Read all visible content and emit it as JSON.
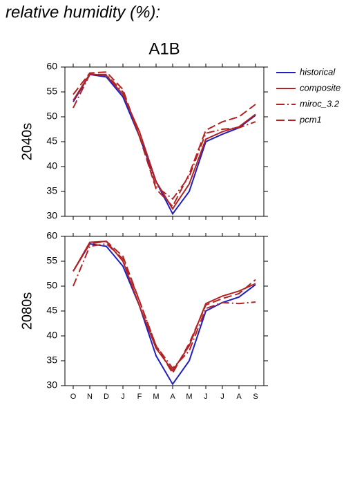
{
  "title": "relative humidity (%):",
  "chart_data": [
    {
      "type": "line",
      "title": "A1B",
      "y_label": "2040s",
      "categories": [
        "O",
        "N",
        "D",
        "J",
        "F",
        "M",
        "A",
        "M",
        "J",
        "J",
        "A",
        "S"
      ],
      "ylim": [
        30,
        60
      ],
      "yticks": [
        30,
        35,
        40,
        45,
        50,
        55,
        60
      ],
      "series": [
        {
          "name": "historical",
          "color": "#1f1fbf",
          "style": "solid",
          "values": [
            53,
            58.5,
            58,
            54,
            46,
            37,
            30.5,
            35,
            45,
            46.5,
            47.8,
            50.3
          ]
        },
        {
          "name": "composite",
          "color": "#b22222",
          "style": "solid",
          "values": [
            53.3,
            58.6,
            58.3,
            54.5,
            47,
            37,
            31.5,
            36.5,
            45.5,
            47,
            48,
            50.5
          ]
        },
        {
          "name": "miroc_3.2",
          "color": "#b22222",
          "style": "dashdot",
          "values": [
            51.8,
            58.5,
            58.5,
            55,
            46,
            36,
            33.5,
            38,
            46.7,
            47.5,
            47.8,
            49
          ]
        },
        {
          "name": "pcm1",
          "color": "#b22222",
          "style": "dashed",
          "values": [
            54.5,
            58.8,
            59,
            55.5,
            46,
            35.5,
            32,
            38.5,
            47.3,
            49,
            50,
            52.5
          ]
        }
      ]
    },
    {
      "type": "line",
      "y_label": "2080s",
      "categories": [
        "O",
        "N",
        "D",
        "J",
        "F",
        "M",
        "A",
        "M",
        "J",
        "J",
        "A",
        "S"
      ],
      "ylim": [
        30,
        60
      ],
      "yticks": [
        30,
        35,
        40,
        45,
        50,
        55,
        60
      ],
      "series": [
        {
          "name": "historical",
          "color": "#1f1fbf",
          "style": "solid",
          "values": [
            53,
            58.5,
            58,
            54,
            46,
            36,
            30.3,
            35,
            45,
            46.7,
            47.8,
            50.3
          ]
        },
        {
          "name": "composite",
          "color": "#b22222",
          "style": "solid",
          "values": [
            53,
            58.8,
            59,
            55,
            46,
            37.5,
            33,
            38,
            46.5,
            48,
            49,
            50.5
          ]
        },
        {
          "name": "miroc_3.2",
          "color": "#b22222",
          "style": "dashdot",
          "values": [
            50,
            58,
            58.5,
            55.5,
            47,
            38,
            33.5,
            37,
            45.5,
            46.7,
            46.5,
            46.8
          ]
        },
        {
          "name": "pcm1",
          "color": "#b22222",
          "style": "dashed",
          "values": [
            53,
            58.5,
            59,
            56,
            47,
            38,
            32.5,
            38.5,
            46.2,
            47.5,
            48.5,
            51.3
          ]
        }
      ]
    }
  ]
}
